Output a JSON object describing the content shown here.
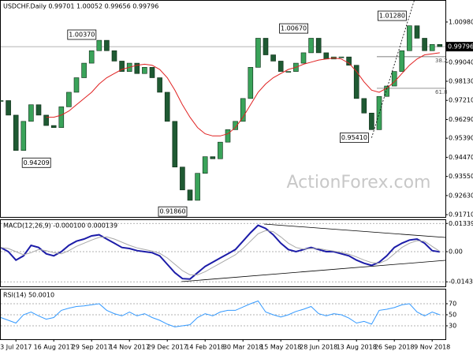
{
  "chart_data": [
    {
      "type": "candlestick",
      "title": "USDCHF.Daily 0.99701 1.00052 0.99656 0.99796",
      "watermark": "ActionForex.com",
      "close": [
        0.972,
        0.965,
        0.948,
        0.962,
        0.97,
        0.965,
        0.96,
        0.959,
        0.969,
        0.976,
        0.983,
        0.99,
        0.996,
        1.001,
        0.996,
        0.991,
        0.986,
        0.99,
        0.985,
        0.988,
        0.983,
        0.976,
        0.962,
        0.94,
        0.929,
        0.924,
        0.937,
        0.945,
        0.944,
        0.952,
        0.958,
        0.962,
        0.973,
        0.988,
        1.002,
        0.994,
        0.991,
        0.986,
        0.986,
        0.99,
        0.995,
        1.002,
        0.995,
        0.992,
        0.993,
        0.993,
        0.989,
        0.973,
        0.966,
        0.958,
        0.974,
        0.979,
        0.986,
        0.996,
        1.008,
        1.002,
        0.996,
        0.999,
        0.99796
      ],
      "up_color": "#3aa35a",
      "down_color": "#1f5a33",
      "ma_color": "#e02020",
      "ma_values": [
        null,
        null,
        null,
        null,
        null,
        null,
        0.964,
        0.964,
        0.965,
        0.967,
        0.97,
        0.973,
        0.976,
        0.98,
        0.983,
        0.985,
        0.987,
        0.988,
        0.989,
        0.9895,
        0.989,
        0.987,
        0.983,
        0.977,
        0.97,
        0.964,
        0.959,
        0.956,
        0.955,
        0.955,
        0.956,
        0.959,
        0.964,
        0.97,
        0.976,
        0.98,
        0.983,
        0.985,
        0.987,
        0.988,
        0.9895,
        0.9905,
        0.9915,
        0.992,
        0.9925,
        0.992,
        0.99,
        0.986,
        0.981,
        0.977,
        0.976,
        0.978,
        0.981,
        0.985,
        0.989,
        0.992,
        0.994,
        0.9945,
        0.995
      ],
      "current": {
        "value": 0.99796,
        "label": "0.99796"
      },
      "swings": [
        {
          "index": 13,
          "value": 1.0037,
          "label": "1.00370"
        },
        {
          "index": 7,
          "value": 0.94209,
          "label": "0.94209"
        },
        {
          "index": 25,
          "value": 0.9186,
          "label": "0.91860"
        },
        {
          "index": 41,
          "value": 1.0067,
          "label": "1.00670"
        },
        {
          "index": 49,
          "value": 0.9541,
          "label": "0.95410"
        },
        {
          "index": 54,
          "value": 1.0128,
          "label": "1.01280"
        }
      ],
      "fib": [
        {
          "level": 38.2,
          "price": 0.9931
        },
        {
          "level": 61.8,
          "price": 0.9779
        }
      ],
      "ylim": [
        0.916,
        1.0204
      ],
      "yticks": [
        {
          "value": 1.0098,
          "label": "1.00980"
        },
        {
          "value": 0.9904,
          "label": "0.99040"
        },
        {
          "value": 0.9813,
          "label": "0.98130"
        },
        {
          "value": 0.9721,
          "label": "0.97210"
        },
        {
          "value": 0.9629,
          "label": "0.96290"
        },
        {
          "value": 0.9539,
          "label": "0.95390"
        },
        {
          "value": 0.9447,
          "label": "0.94470"
        },
        {
          "value": 0.9355,
          "label": "0.93550"
        },
        {
          "value": 0.9263,
          "label": "0.92630"
        },
        {
          "value": 0.9171,
          "label": "0.91710"
        }
      ]
    },
    {
      "type": "line",
      "title": "MACD(12,26,9) -0.000100 0.000139",
      "series": [
        {
          "color": "#1c1ca8",
          "values": [
            0.002,
            0.0,
            -0.004,
            -0.002,
            0.003,
            0.002,
            -0.001,
            -0.002,
            0.0,
            0.003,
            0.005,
            0.006,
            0.0075,
            0.008,
            0.006,
            0.004,
            0.002,
            0.0015,
            0.0005,
            0.0,
            -0.0005,
            -0.002,
            -0.006,
            -0.01,
            -0.0128,
            -0.013,
            -0.01,
            -0.007,
            -0.005,
            -0.003,
            -0.001,
            0.001,
            0.005,
            0.009,
            0.0125,
            0.011,
            0.008,
            0.004,
            0.001,
            0.0,
            0.001,
            0.002,
            0.001,
            0.0,
            0.0,
            -0.001,
            -0.002,
            -0.004,
            -0.0055,
            -0.0065,
            -0.005,
            -0.002,
            0.002,
            0.004,
            0.0055,
            0.006,
            0.004,
            0.0005,
            -0.0001
          ]
        },
        {
          "color": "#a8a8a8",
          "values": [
            0.002,
            0.0015,
            0.0,
            -0.0015,
            -0.0005,
            0.001,
            0.0005,
            -0.0005,
            -0.001,
            0.0005,
            0.0025,
            0.004,
            0.0055,
            0.0068,
            0.007,
            0.006,
            0.0045,
            0.003,
            0.0018,
            0.001,
            0.0003,
            -0.0008,
            -0.003,
            -0.006,
            -0.009,
            -0.011,
            -0.011,
            -0.0095,
            -0.0075,
            -0.0055,
            -0.0035,
            -0.0015,
            0.0015,
            0.005,
            0.0085,
            0.01,
            0.0095,
            0.007,
            0.004,
            0.002,
            0.0012,
            0.0015,
            0.0015,
            0.0008,
            0.0003,
            -0.0004,
            -0.0012,
            -0.0025,
            -0.004,
            -0.0052,
            -0.0055,
            -0.004,
            -0.001,
            0.002,
            0.004,
            0.0052,
            0.005,
            0.0025,
            0.000139
          ]
        }
      ],
      "ylim": [
        -0.01648,
        0.01536
      ],
      "yticks": [
        0.013391,
        {
          "value": 0,
          "label": "0.00"
        },
        -0.014323
      ]
    },
    {
      "type": "line",
      "title": "RSI(14) 50.0010",
      "series": [
        {
          "color": "#3399ff",
          "values": [
            45,
            40,
            35,
            50,
            55,
            48,
            42,
            45,
            58,
            62,
            65,
            66,
            68,
            70,
            58,
            52,
            48,
            55,
            48,
            52,
            45,
            40,
            33,
            28,
            30,
            32,
            45,
            52,
            48,
            55,
            58,
            58,
            64,
            70,
            75,
            55,
            50,
            46,
            50,
            56,
            60,
            65,
            52,
            48,
            52,
            50,
            44,
            35,
            38,
            33,
            58,
            60,
            63,
            68,
            70,
            55,
            48,
            55,
            50.001
          ]
        }
      ],
      "ylim": [
        5.7,
        97.1
      ],
      "yticks": [
        70,
        50,
        30
      ],
      "xticks": [
        {
          "value": 2,
          "label": "3 Jul 2017"
        },
        {
          "value": 7,
          "label": "16 Aug 2017"
        },
        {
          "value": 12,
          "label": "29 Sep 2017"
        },
        {
          "value": 17,
          "label": "14 Nov 2017"
        },
        {
          "value": 22,
          "label": "29 Dec 2017"
        },
        {
          "value": 27,
          "label": "14 Feb 2018"
        },
        {
          "value": 32,
          "label": "30 Mar 2018"
        },
        {
          "value": 37,
          "label": "15 May 2018"
        },
        {
          "value": 42,
          "label": "28 Jun 2018"
        },
        {
          "value": 47,
          "label": "13 Aug 2018"
        },
        {
          "value": 52,
          "label": "26 Sep 2018"
        },
        {
          "value": 57,
          "label": "9 Nov 2018"
        }
      ]
    }
  ]
}
